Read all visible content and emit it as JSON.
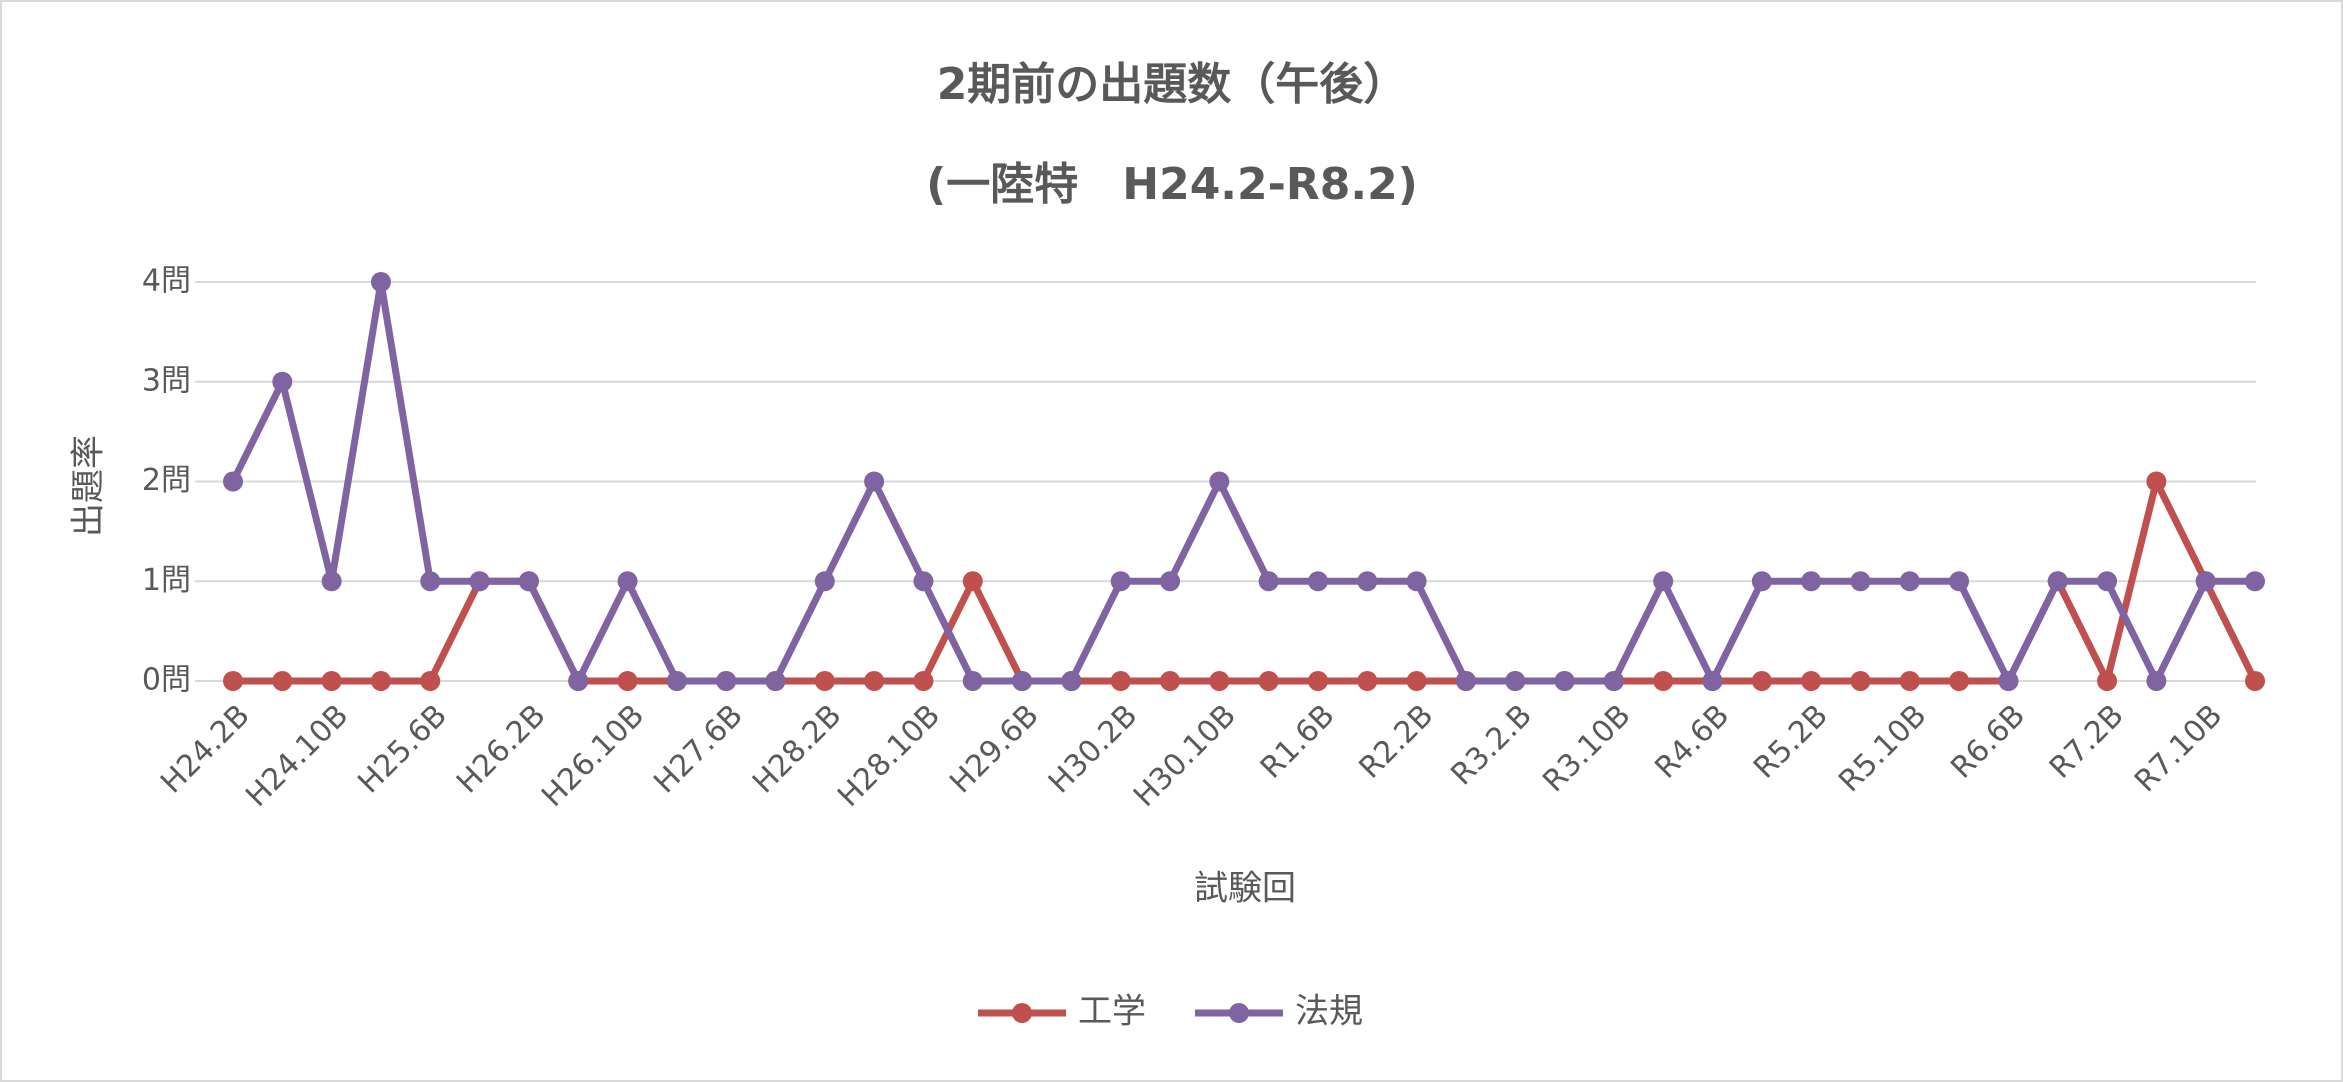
{
  "chart_data": {
    "type": "line",
    "title": "2期前の出題数（午後）",
    "subtitle": "(一陸特　H24.2-R8.2)",
    "x_label": "試験回",
    "y_label": "出題率",
    "categories": [
      "H24.2B",
      null,
      "H24.10B",
      null,
      "H25.6B",
      null,
      "H26.2B",
      null,
      "H26.10B",
      null,
      "H27.6B",
      null,
      "H28.2B",
      null,
      "H28.10B",
      null,
      "H29.6B",
      null,
      "H30.2B",
      null,
      "H30.10B",
      null,
      "R1.6B",
      null,
      "R2.2B",
      null,
      "R3.2.B",
      null,
      "R3.10B",
      null,
      "R4.6B",
      null,
      "R5.2B",
      null,
      "R5.10B",
      null,
      "R6.6B",
      null,
      "R7.2B",
      null,
      "R7.10B",
      null
    ],
    "series": [
      {
        "name": "工学",
        "color": "#c0504d",
        "values": [
          0,
          0,
          0,
          0,
          0,
          1,
          1,
          0,
          0,
          0,
          0,
          0,
          0,
          0,
          0,
          1,
          0,
          0,
          0,
          0,
          0,
          0,
          0,
          0,
          0,
          0,
          0,
          0,
          0,
          0,
          0,
          0,
          0,
          0,
          0,
          0,
          0,
          1,
          0,
          2,
          1,
          0
        ]
      },
      {
        "name": "法規",
        "color": "#8064a2",
        "values": [
          2,
          3,
          1,
          4,
          1,
          1,
          1,
          0,
          1,
          0,
          0,
          0,
          1,
          2,
          1,
          0,
          0,
          0,
          1,
          1,
          2,
          1,
          1,
          1,
          1,
          0,
          0,
          0,
          0,
          1,
          0,
          1,
          1,
          1,
          1,
          1,
          0,
          1,
          1,
          0,
          1,
          1
        ]
      }
    ],
    "ylim": [
      0,
      4
    ],
    "yticks": [
      {
        "value": 0,
        "label": "0問"
      },
      {
        "value": 1,
        "label": "1問"
      },
      {
        "value": 2,
        "label": "2問"
      },
      {
        "value": 3,
        "label": "3問"
      },
      {
        "value": 4,
        "label": "4問"
      }
    ],
    "grid": true,
    "legend": "bottom"
  }
}
